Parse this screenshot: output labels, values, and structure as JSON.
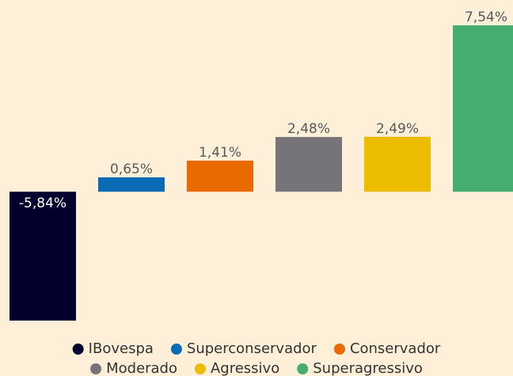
{
  "chart_data": {
    "type": "bar",
    "categories": [
      "IBovespa",
      "Superconservador",
      "Conservador",
      "Moderado",
      "Agressivo",
      "Superagressivo"
    ],
    "values": [
      -5.84,
      0.65,
      1.41,
      2.48,
      2.49,
      7.54
    ],
    "value_labels": [
      "-5,84%",
      "0,65%",
      "1,41%",
      "2,48%",
      "2,49%",
      "7,54%"
    ],
    "colors": [
      "#03002e",
      "#0a6ab3",
      "#e86a00",
      "#767479",
      "#ecbc00",
      "#45ad72"
    ],
    "legend": "bottom"
  }
}
